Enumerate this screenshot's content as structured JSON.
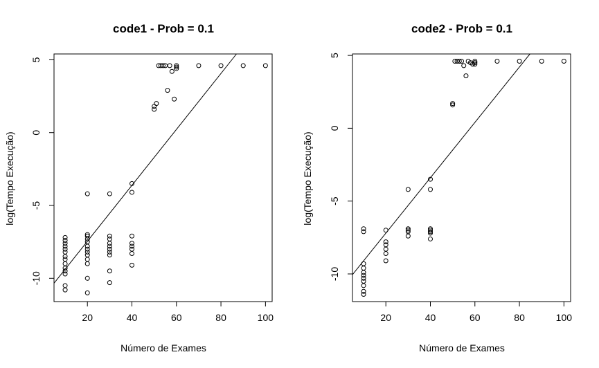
{
  "chart_data": [
    {
      "type": "scatter",
      "title": "code1 - Prob = 0.1",
      "xlabel": "Número de Exames",
      "ylabel": "log(Tempo Execução)",
      "xlim": [
        5,
        103
      ],
      "ylim": [
        -11.6,
        5.4
      ],
      "xticks": [
        20,
        40,
        60,
        80,
        100
      ],
      "yticks": [
        -10,
        -5,
        0,
        5
      ],
      "grid": false,
      "legend": "none",
      "marker": "open-circle",
      "points": [
        [
          10,
          -7.2
        ],
        [
          10,
          -7.4
        ],
        [
          10,
          -7.6
        ],
        [
          10,
          -7.8
        ],
        [
          10,
          -8.0
        ],
        [
          10,
          -8.2
        ],
        [
          10,
          -8.5
        ],
        [
          10,
          -8.7
        ],
        [
          10,
          -9.0
        ],
        [
          10,
          -9.3
        ],
        [
          10,
          -9.5
        ],
        [
          10,
          -9.7
        ],
        [
          10,
          -10.5
        ],
        [
          10,
          -10.8
        ],
        [
          20,
          -4.2
        ],
        [
          20,
          -7.0
        ],
        [
          20,
          -7.1
        ],
        [
          20,
          -7.3
        ],
        [
          20,
          -7.5
        ],
        [
          20,
          -7.8
        ],
        [
          20,
          -8.0
        ],
        [
          20,
          -8.2
        ],
        [
          20,
          -8.4
        ],
        [
          20,
          -8.7
        ],
        [
          20,
          -9.0
        ],
        [
          20,
          -10.0
        ],
        [
          20,
          -11.0
        ],
        [
          30,
          -4.2
        ],
        [
          30,
          -7.1
        ],
        [
          30,
          -7.3
        ],
        [
          30,
          -7.6
        ],
        [
          30,
          -7.8
        ],
        [
          30,
          -8.0
        ],
        [
          30,
          -8.2
        ],
        [
          30,
          -8.4
        ],
        [
          30,
          -9.5
        ],
        [
          30,
          -10.3
        ],
        [
          40,
          -3.5
        ],
        [
          40,
          -4.1
        ],
        [
          40,
          -7.1
        ],
        [
          40,
          -7.6
        ],
        [
          40,
          -7.8
        ],
        [
          40,
          -8.0
        ],
        [
          40,
          -8.3
        ],
        [
          40,
          -9.1
        ],
        [
          50,
          1.6
        ],
        [
          50,
          1.8
        ],
        [
          51,
          2.0
        ],
        [
          52,
          4.6
        ],
        [
          53,
          4.6
        ],
        [
          54,
          4.6
        ],
        [
          55,
          4.6
        ],
        [
          56,
          2.9
        ],
        [
          57,
          4.6
        ],
        [
          58,
          4.2
        ],
        [
          59,
          2.3
        ],
        [
          60,
          4.4
        ],
        [
          60,
          4.5
        ],
        [
          60,
          4.6
        ],
        [
          70,
          4.6
        ],
        [
          80,
          4.6
        ],
        [
          90,
          4.6
        ],
        [
          100,
          4.6
        ]
      ],
      "fit_line": {
        "intercept": -11.3,
        "slope": 0.192
      }
    },
    {
      "type": "scatter",
      "title": "code2 - Prob = 0.1",
      "xlabel": "Número de Exames",
      "ylabel": "log(Tempo Execução)",
      "xlim": [
        5,
        103
      ],
      "ylim": [
        -11.9,
        5.1
      ],
      "xticks": [
        20,
        40,
        60,
        80,
        100
      ],
      "yticks": [
        -10,
        -5,
        0,
        5
      ],
      "grid": false,
      "legend": "none",
      "marker": "open-circle",
      "points": [
        [
          10,
          -6.9
        ],
        [
          10,
          -7.1
        ],
        [
          10,
          -9.3
        ],
        [
          10,
          -9.6
        ],
        [
          10,
          -9.9
        ],
        [
          10,
          -10.1
        ],
        [
          10,
          -10.3
        ],
        [
          10,
          -10.5
        ],
        [
          10,
          -10.8
        ],
        [
          10,
          -11.2
        ],
        [
          10,
          -11.4
        ],
        [
          20,
          -7.0
        ],
        [
          20,
          -7.8
        ],
        [
          20,
          -8.0
        ],
        [
          20,
          -8.3
        ],
        [
          20,
          -8.6
        ],
        [
          20,
          -9.1
        ],
        [
          30,
          -4.2
        ],
        [
          30,
          -6.9
        ],
        [
          30,
          -7.0
        ],
        [
          30,
          -7.1
        ],
        [
          30,
          -7.4
        ],
        [
          40,
          -3.5
        ],
        [
          40,
          -4.2
        ],
        [
          40,
          -6.9
        ],
        [
          40,
          -7.0
        ],
        [
          40,
          -7.1
        ],
        [
          40,
          -7.2
        ],
        [
          40,
          -7.6
        ],
        [
          50,
          1.6
        ],
        [
          50,
          1.7
        ],
        [
          51,
          4.6
        ],
        [
          52,
          4.6
        ],
        [
          53,
          4.6
        ],
        [
          54,
          4.6
        ],
        [
          55,
          4.3
        ],
        [
          56,
          3.6
        ],
        [
          57,
          4.6
        ],
        [
          58,
          4.5
        ],
        [
          59,
          4.4
        ],
        [
          60,
          4.4
        ],
        [
          60,
          4.5
        ],
        [
          60,
          4.6
        ],
        [
          70,
          4.6
        ],
        [
          80,
          4.6
        ],
        [
          90,
          4.6
        ],
        [
          100,
          4.6
        ]
      ],
      "fit_line": {
        "intercept": -11.0,
        "slope": 0.19
      }
    }
  ]
}
